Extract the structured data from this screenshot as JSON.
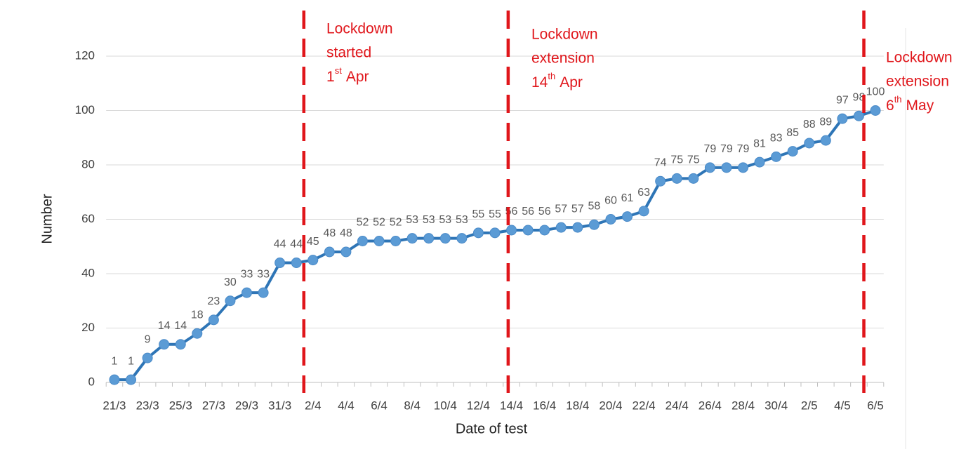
{
  "chart_data": {
    "type": "line",
    "x_label": "Date of test",
    "y_label": "Number",
    "categories": [
      "21/3",
      null,
      "23/3",
      null,
      "25/3",
      null,
      "27/3",
      null,
      "29/3",
      null,
      "31/3",
      null,
      "2/4",
      null,
      "4/4",
      null,
      "6/4",
      null,
      "8/4",
      null,
      "10/4",
      null,
      "12/4",
      null,
      "14/4",
      null,
      "16/4",
      null,
      "18/4",
      null,
      "20/4",
      null,
      "22/4",
      null,
      "24/4",
      null,
      "26/4",
      null,
      "28/4",
      null,
      "30/4",
      null,
      "2/5",
      null,
      "4/5",
      null,
      "6/5"
    ],
    "values": [
      1,
      1,
      9,
      14,
      14,
      18,
      23,
      30,
      33,
      33,
      44,
      44,
      45,
      48,
      48,
      52,
      52,
      52,
      53,
      53,
      53,
      53,
      55,
      55,
      56,
      56,
      56,
      57,
      57,
      58,
      60,
      61,
      63,
      74,
      75,
      75,
      79,
      79,
      79,
      81,
      83,
      85,
      88,
      89,
      97,
      98,
      100
    ],
    "color": "#2e75b6",
    "ylim": [
      0,
      120
    ],
    "yticks": [
      0,
      20,
      40,
      60,
      80,
      100,
      120
    ],
    "grid": true,
    "annotations": [
      {
        "lines": [
          "Lockdown",
          "started"
        ],
        "day": "1",
        "sup": "st",
        "month": "Apr",
        "color": "#e0161b"
      },
      {
        "lines": [
          "Lockdown",
          "extension"
        ],
        "day": "14",
        "sup": "th",
        "month": "Apr",
        "color": "#e0161b"
      },
      {
        "lines": [
          "Lockdown",
          "extension"
        ],
        "day": "6",
        "sup": "th",
        "month": "May",
        "color": "#e0161b"
      }
    ]
  }
}
